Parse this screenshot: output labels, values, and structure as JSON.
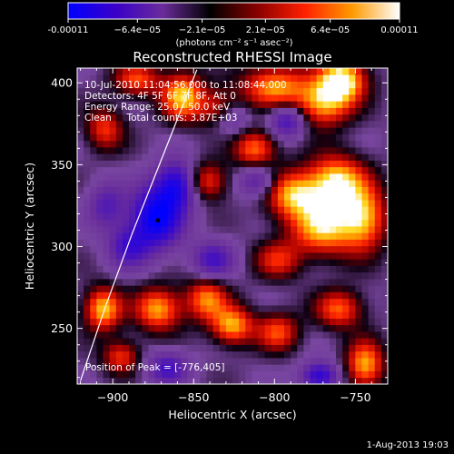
{
  "colorbar": {
    "tick_labels": [
      "-0.00011",
      "−6.4e−05",
      "−2.1e−05",
      "2.1e−05",
      "6.4e−05",
      "0.00011"
    ],
    "tick_values": [
      -0.00011,
      -6.4e-05,
      -2.1e-05,
      2.1e-05,
      6.4e-05,
      0.00011
    ],
    "range": [
      -0.00011,
      0.00011
    ],
    "unit_label": "(photons cm⁻² s⁻¹ asec⁻²)",
    "colors": [
      "#0000ff",
      "#3a00c8",
      "#6a2c9a",
      "#000000",
      "#8a0000",
      "#ff2000",
      "#ff9a00",
      "#ffffff"
    ]
  },
  "chart_data": {
    "type": "heatmap",
    "title": "Reconstructed RHESSI Image",
    "xlabel": "Heliocentric X (arcsec)",
    "ylabel": "Heliocentric Y (arcsec)",
    "xlim": [
      -922,
      -730
    ],
    "ylim": [
      216,
      409
    ],
    "x_ticks": [
      -900,
      -850,
      -800,
      -750
    ],
    "y_ticks": [
      250,
      300,
      350,
      400
    ],
    "x_tick_labels": [
      "−900",
      "−850",
      "−800",
      "−750"
    ],
    "y_tick_labels": [
      "250",
      "300",
      "350",
      "400"
    ],
    "annotation_lines": [
      "10-Jul-2010 11:04:56.000 to 11:08:44.000",
      "Detectors: 4F 5F 6F 7F 8F, Att 0",
      "Energy Range: 25.0 - 50.0 keV",
      "Clean     Total counts: 3.87E+03"
    ],
    "peak_text": "Position of Peak = [-776,405]",
    "peak_marker": [
      -872,
      316
    ],
    "limb_curve": [
      [
        -920,
        218
      ],
      [
        -905,
        262
      ],
      [
        -888,
        308
      ],
      [
        -868,
        358
      ],
      [
        -848,
        408
      ]
    ],
    "blobs": [
      {
        "x": -758,
        "y": 402,
        "v": 1.0,
        "sx": 10,
        "sy": 9
      },
      {
        "x": -770,
        "y": 388,
        "v": 0.8,
        "sx": 12,
        "sy": 10
      },
      {
        "x": -762,
        "y": 340,
        "v": 0.9,
        "sx": 12,
        "sy": 11
      },
      {
        "x": -788,
        "y": 332,
        "v": 0.8,
        "sx": 12,
        "sy": 10
      },
      {
        "x": -770,
        "y": 312,
        "v": 0.85,
        "sx": 14,
        "sy": 12
      },
      {
        "x": -745,
        "y": 318,
        "v": 0.8,
        "sx": 10,
        "sy": 14
      },
      {
        "x": -800,
        "y": 398,
        "v": 0.75,
        "sx": 14,
        "sy": 9
      },
      {
        "x": -833,
        "y": 385,
        "v": 0.55,
        "sx": 10,
        "sy": 8
      },
      {
        "x": -812,
        "y": 360,
        "v": 0.7,
        "sx": 9,
        "sy": 8
      },
      {
        "x": -842,
        "y": 340,
        "v": 0.6,
        "sx": 9,
        "sy": 8
      },
      {
        "x": -857,
        "y": 392,
        "v": 0.85,
        "sx": 9,
        "sy": 10
      },
      {
        "x": -885,
        "y": 402,
        "v": 0.6,
        "sx": 10,
        "sy": 7
      },
      {
        "x": -905,
        "y": 372,
        "v": 0.55,
        "sx": 8,
        "sy": 9
      },
      {
        "x": -906,
        "y": 262,
        "v": 0.85,
        "sx": 8,
        "sy": 9
      },
      {
        "x": -872,
        "y": 262,
        "v": 0.8,
        "sx": 10,
        "sy": 9
      },
      {
        "x": -842,
        "y": 268,
        "v": 0.7,
        "sx": 9,
        "sy": 9
      },
      {
        "x": -826,
        "y": 252,
        "v": 0.8,
        "sx": 9,
        "sy": 8
      },
      {
        "x": -798,
        "y": 248,
        "v": 0.6,
        "sx": 9,
        "sy": 8
      },
      {
        "x": -760,
        "y": 262,
        "v": 0.65,
        "sx": 10,
        "sy": 8
      },
      {
        "x": -744,
        "y": 228,
        "v": 0.8,
        "sx": 8,
        "sy": 10
      },
      {
        "x": -798,
        "y": 292,
        "v": 0.5,
        "sx": 10,
        "sy": 8
      },
      {
        "x": -895,
        "y": 233,
        "v": 0.55,
        "sx": 8,
        "sy": 7
      },
      {
        "x": -873,
        "y": 318,
        "v": -1.0,
        "sx": 11,
        "sy": 13
      },
      {
        "x": -860,
        "y": 338,
        "v": -0.8,
        "sx": 9,
        "sy": 10
      },
      {
        "x": -890,
        "y": 300,
        "v": -0.55,
        "sx": 9,
        "sy": 9
      },
      {
        "x": -810,
        "y": 340,
        "v": -0.5,
        "sx": 8,
        "sy": 7
      },
      {
        "x": -838,
        "y": 292,
        "v": -0.55,
        "sx": 9,
        "sy": 8
      },
      {
        "x": -792,
        "y": 377,
        "v": -0.6,
        "sx": 8,
        "sy": 7
      },
      {
        "x": -866,
        "y": 226,
        "v": -0.55,
        "sx": 9,
        "sy": 7
      },
      {
        "x": -772,
        "y": 221,
        "v": -0.75,
        "sx": 8,
        "sy": 6
      },
      {
        "x": -904,
        "y": 325,
        "v": -0.45,
        "sx": 8,
        "sy": 10
      },
      {
        "x": -826,
        "y": 380,
        "v": -0.45,
        "sx": 8,
        "sy": 8
      }
    ]
  },
  "footer": {
    "timestamp": "1-Aug-2013 19:03"
  }
}
